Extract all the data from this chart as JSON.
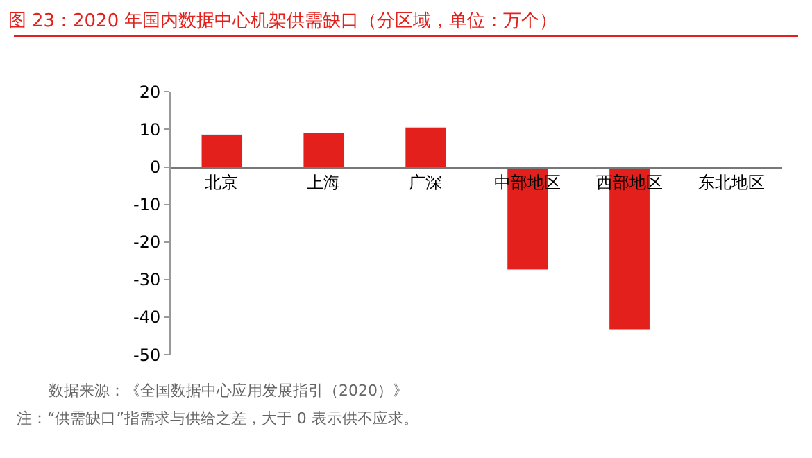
{
  "chart_data": {
    "type": "bar",
    "title": "图 23：2020 年国内数据中心机架供需缺口（分区域，单位：万个）",
    "categories": [
      "北京",
      "上海",
      "广深",
      "中部地区",
      "西部地区",
      "东北地区"
    ],
    "values": [
      8.7,
      9.1,
      10.6,
      -27.4,
      -43.3,
      null
    ],
    "color": "#e3201b",
    "ylim": [
      -50,
      20
    ],
    "yticks": [
      -50,
      -40,
      -30,
      -20,
      -10,
      0,
      10,
      20
    ],
    "annotations": [
      "数据来源：《全国数据中心应用发展指引（2020）》",
      "注：“供需缺口”指需求与供给之差，大于 0 表示供不应求。"
    ]
  }
}
